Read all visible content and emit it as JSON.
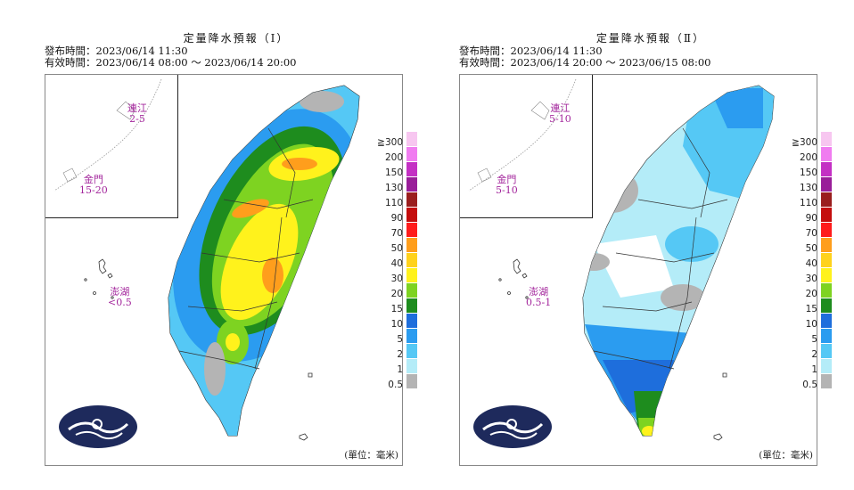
{
  "panels": [
    {
      "title": "定量降水預報（Ⅰ）",
      "issue_time": "發布時間：2023/06/14 11:30",
      "valid_time": "有效時間：2023/06/14 08:00 ～ 2023/06/14 20:00",
      "regions": {
        "matsu": {
          "name": "連江",
          "value": "2-5"
        },
        "kinmen": {
          "name": "金門",
          "value": "15-20"
        },
        "penghu": {
          "name": "澎湖",
          "value": "<0.5"
        }
      },
      "unit": "(單位：毫米)"
    },
    {
      "title": "定量降水預報（Ⅱ）",
      "issue_time": "發布時間：2023/06/14 11:30",
      "valid_time": "有效時間：2023/06/14 20:00 ～ 2023/06/15 08:00",
      "regions": {
        "matsu": {
          "name": "連江",
          "value": "5-10"
        },
        "kinmen": {
          "name": "金門",
          "value": "5-10"
        },
        "penghu": {
          "name": "澎湖",
          "value": "0.5-1"
        }
      },
      "unit": "(單位：毫米)"
    }
  ],
  "legend": [
    {
      "label": "≧300",
      "color": "#f7c6f0"
    },
    {
      "label": "200",
      "color": "#f07cf0"
    },
    {
      "label": "150",
      "color": "#c430c4"
    },
    {
      "label": "130",
      "color": "#991e99"
    },
    {
      "label": "110",
      "color": "#9a1e1e"
    },
    {
      "label": "90",
      "color": "#c40d0d"
    },
    {
      "label": "70",
      "color": "#ff1c1c"
    },
    {
      "label": "50",
      "color": "#ff9e1c"
    },
    {
      "label": "40",
      "color": "#ffd21c"
    },
    {
      "label": "30",
      "color": "#fff21c"
    },
    {
      "label": "20",
      "color": "#7ed321"
    },
    {
      "label": "15",
      "color": "#1e8c1e"
    },
    {
      "label": "10",
      "color": "#1e6edc"
    },
    {
      "label": "5",
      "color": "#2b9cf0"
    },
    {
      "label": "2",
      "color": "#55c8f5"
    },
    {
      "label": "1",
      "color": "#b4ecf8"
    },
    {
      "label": "0.5",
      "color": "#b4b4b4"
    }
  ],
  "colors": {
    "logo_bg": "#1e2a5c",
    "region_label": "#a3269c"
  },
  "icons": [
    "cwb-logo-icon"
  ]
}
